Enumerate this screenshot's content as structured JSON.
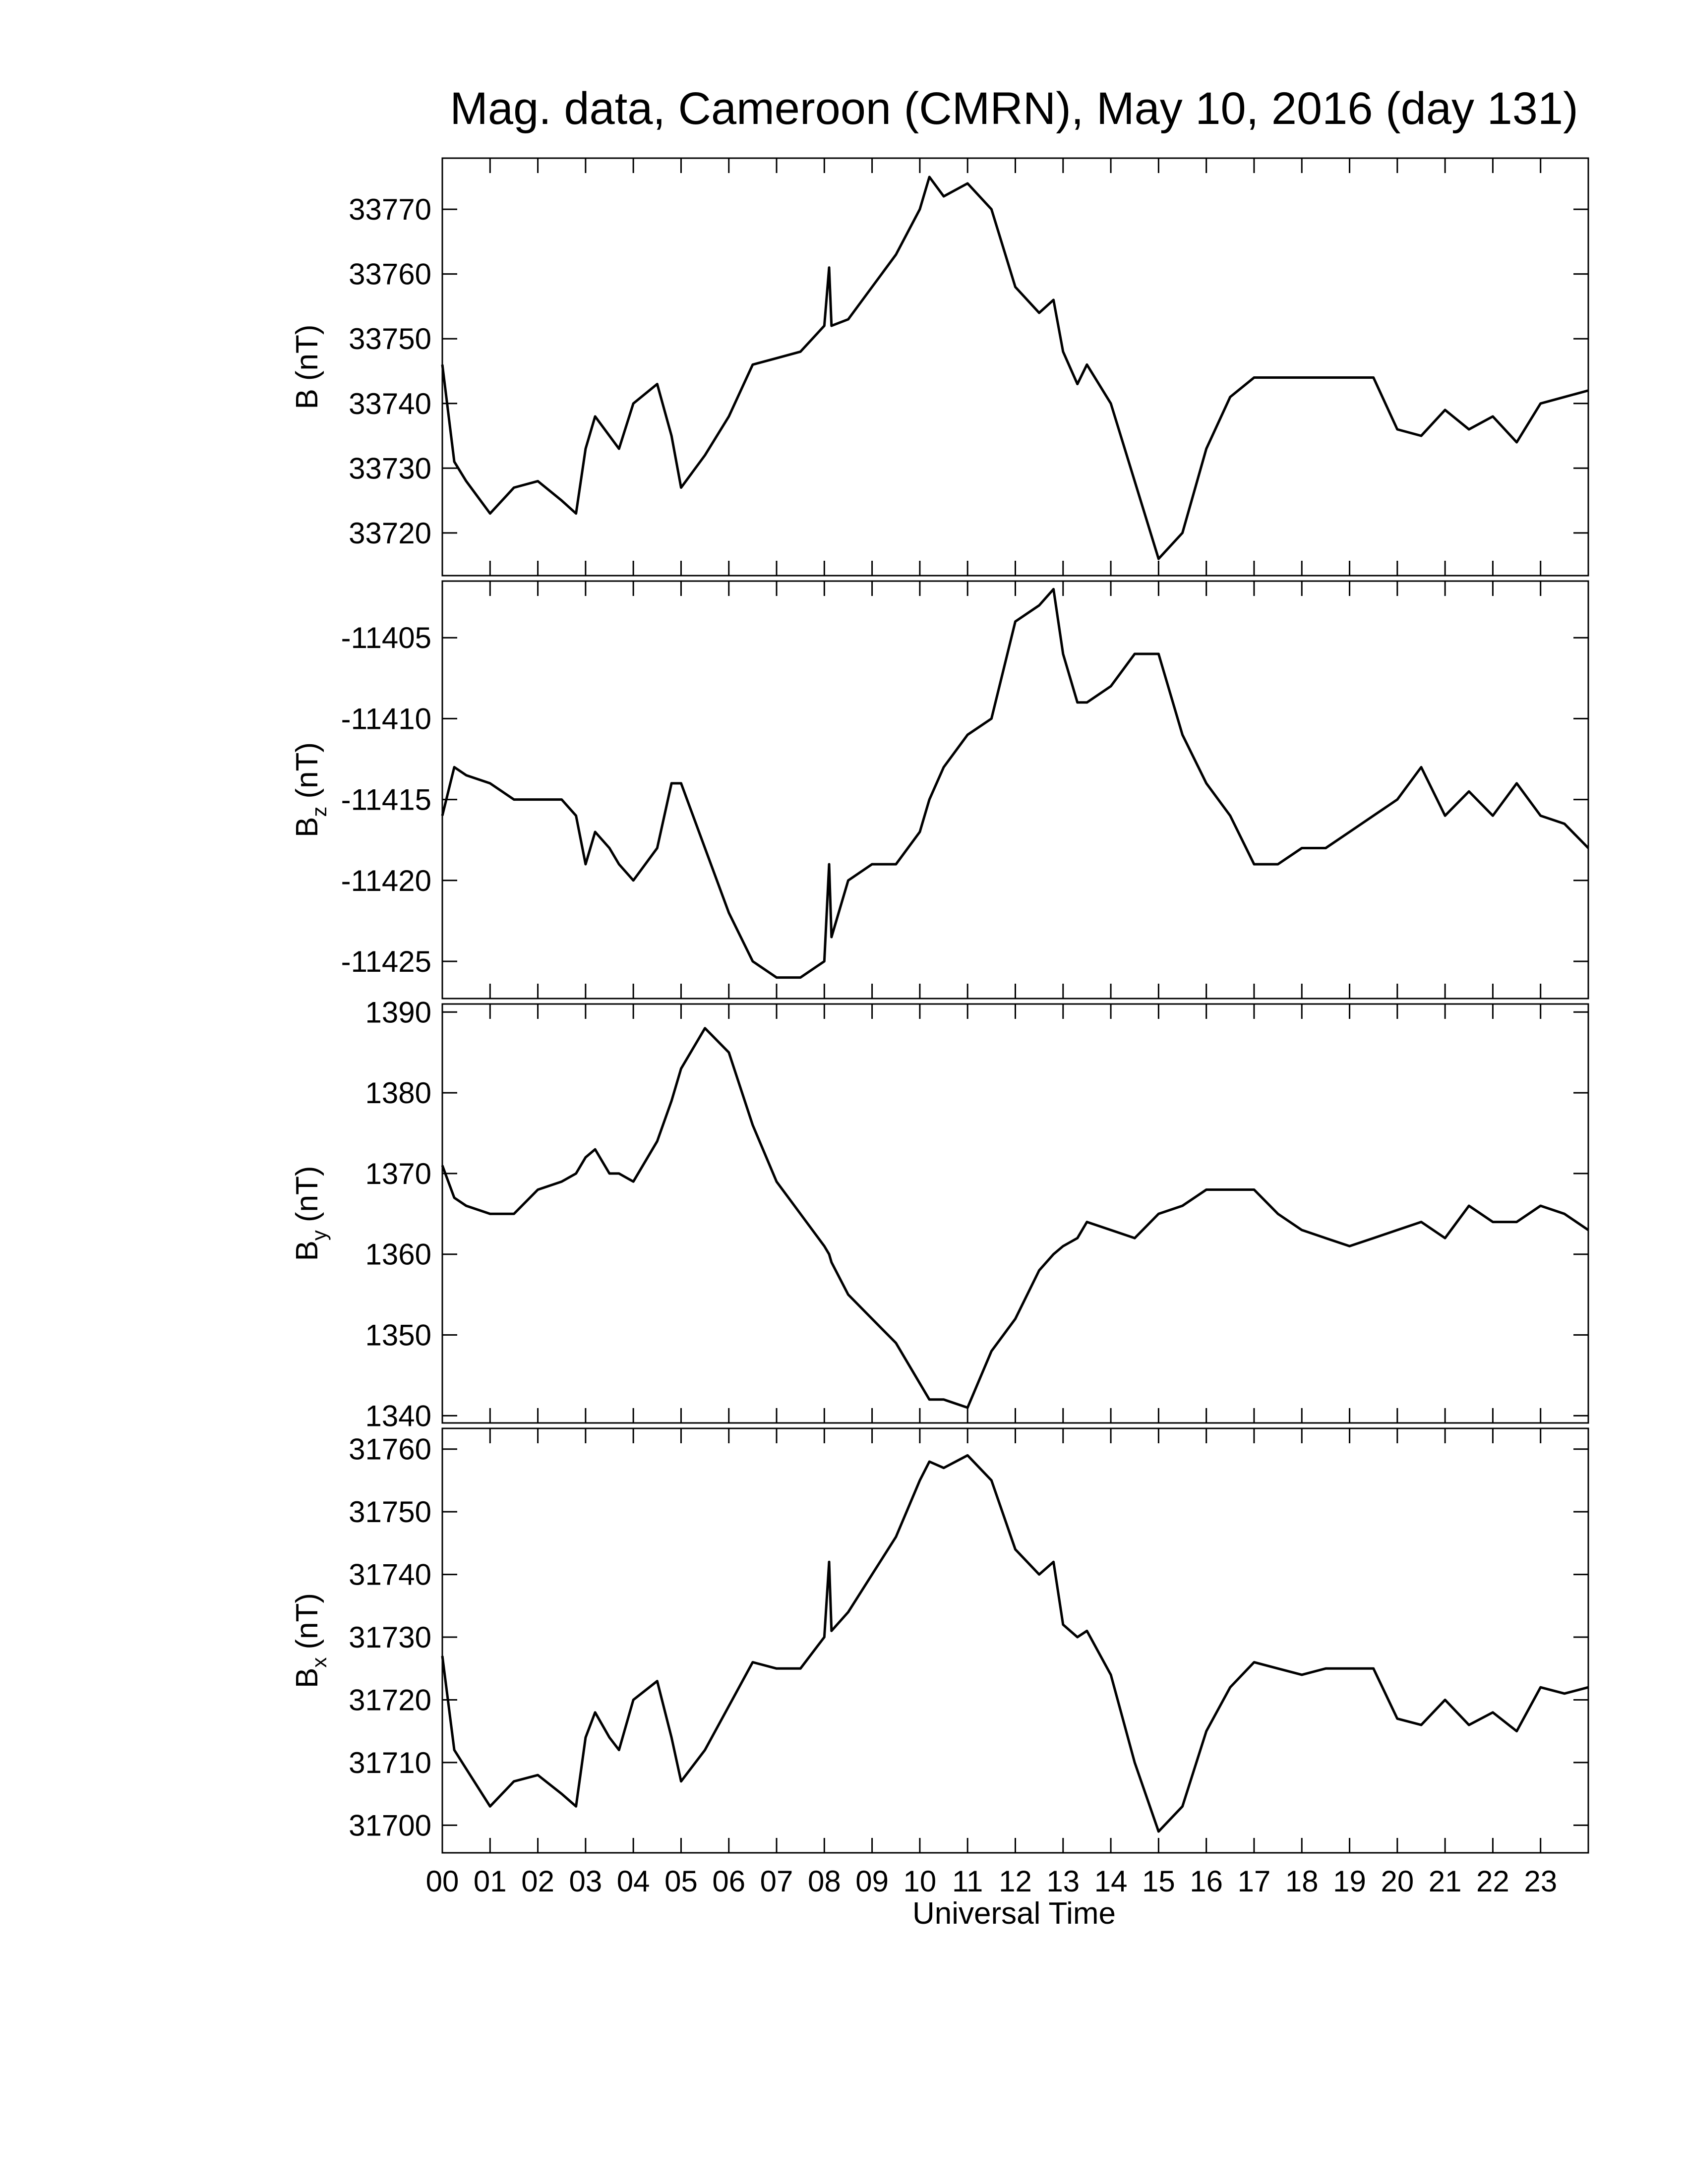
{
  "title": "Mag. data, Cameroon (CMRN), May 10, 2016 (day 131)",
  "xlabel": "Universal Time",
  "xlim": [
    0,
    24
  ],
  "xticks": [
    {
      "value": 0,
      "label": "00"
    },
    {
      "value": 1,
      "label": "01"
    },
    {
      "value": 2,
      "label": "02"
    },
    {
      "value": 3,
      "label": "03"
    },
    {
      "value": 4,
      "label": "04"
    },
    {
      "value": 5,
      "label": "05"
    },
    {
      "value": 6,
      "label": "06"
    },
    {
      "value": 7,
      "label": "07"
    },
    {
      "value": 8,
      "label": "08"
    },
    {
      "value": 9,
      "label": "09"
    },
    {
      "value": 10,
      "label": "10"
    },
    {
      "value": 11,
      "label": "11"
    },
    {
      "value": 12,
      "label": "12"
    },
    {
      "value": 13,
      "label": "13"
    },
    {
      "value": 14,
      "label": "14"
    },
    {
      "value": 15,
      "label": "15"
    },
    {
      "value": 16,
      "label": "16"
    },
    {
      "value": 17,
      "label": "17"
    },
    {
      "value": 18,
      "label": "18"
    },
    {
      "value": 19,
      "label": "19"
    },
    {
      "value": 20,
      "label": "20"
    },
    {
      "value": 21,
      "label": "21"
    },
    {
      "value": 22,
      "label": "22"
    },
    {
      "value": 23,
      "label": "23"
    }
  ],
  "x": [
    0,
    0.25,
    0.5,
    1,
    1.5,
    2,
    2.5,
    2.8,
    3,
    3.2,
    3.5,
    3.7,
    4,
    4.5,
    4.8,
    5,
    5.5,
    6,
    6.5,
    7,
    7.5,
    8,
    8.1,
    8.15,
    8.5,
    9,
    9.5,
    10,
    10.2,
    10.5,
    11,
    11.5,
    12,
    12.5,
    12.8,
    13,
    13.3,
    13.5,
    14,
    14.5,
    15,
    15.5,
    16,
    16.5,
    17,
    17.5,
    18,
    18.5,
    19,
    19.5,
    20,
    20.5,
    21,
    21.5,
    22,
    22.5,
    23,
    23.5,
    24
  ],
  "chart_data": [
    {
      "type": "line",
      "color": "#000000",
      "ylabel": "B",
      "ylabel_unit": "(nT)",
      "ylim": [
        33713.4,
        33777.9
      ],
      "yticks": [
        33720,
        33730,
        33740,
        33750,
        33760,
        33770
      ],
      "values": [
        33746,
        33731,
        33728,
        33723,
        33727,
        33728,
        33725,
        33723,
        33733,
        33738,
        33735,
        33733,
        33740,
        33743,
        33735,
        33727,
        33732,
        33738,
        33746,
        33747,
        33748,
        33752,
        33761,
        33752,
        33753,
        33758,
        33763,
        33770,
        33775,
        33772,
        33774,
        33770,
        33758,
        33754,
        33756,
        33748,
        33743,
        33746,
        33740,
        33728,
        33716,
        33720,
        33733,
        33741,
        33744,
        33744,
        33744,
        33744,
        33744,
        33744,
        33736,
        33735,
        33739,
        33736,
        33738,
        33734,
        33740,
        33741,
        33742
      ]
    },
    {
      "type": "line",
      "color": "#000000",
      "ylabel": "B",
      "ylabel_sub": "z",
      "ylabel_unit": "(nT)",
      "ylim": [
        -11427.3,
        -11401.5
      ],
      "yticks": [
        -11425,
        -11420,
        -11415,
        -11410,
        -11405
      ],
      "values": [
        -11416,
        -11413,
        -11413.5,
        -11414,
        -11415,
        -11415,
        -11415,
        -11416,
        -11419,
        -11417,
        -11418,
        -11419,
        -11420,
        -11418,
        -11414,
        -11414,
        -11418,
        -11422,
        -11425,
        -11426,
        -11426,
        -11425,
        -11419,
        -11423.5,
        -11420,
        -11419,
        -11419,
        -11417,
        -11415,
        -11413,
        -11411,
        -11410,
        -11404,
        -11403,
        -11402,
        -11406,
        -11409,
        -11409,
        -11408,
        -11406,
        -11406,
        -11411,
        -11414,
        -11416,
        -11419,
        -11419,
        -11418,
        -11418,
        -11417,
        -11416,
        -11415,
        -11413,
        -11416,
        -11414.5,
        -11416,
        -11414,
        -11416,
        -11416.5,
        -11418
      ]
    },
    {
      "type": "line",
      "color": "#000000",
      "ylabel": "B",
      "ylabel_sub": "y",
      "ylabel_unit": "(nT)",
      "ylim": [
        1339.1,
        1391
      ],
      "yticks": [
        1340,
        1350,
        1360,
        1370,
        1380,
        1390
      ],
      "values": [
        1371,
        1367,
        1366,
        1365,
        1365,
        1368,
        1369,
        1370,
        1372,
        1373,
        1370,
        1370,
        1369,
        1374,
        1379,
        1383,
        1388,
        1385,
        1376,
        1369,
        1365,
        1361,
        1360,
        1359,
        1355,
        1352,
        1349,
        1344,
        1342,
        1342,
        1341,
        1348,
        1352,
        1358,
        1360,
        1361,
        1362,
        1364,
        1363,
        1362,
        1365,
        1366,
        1368,
        1368,
        1368,
        1365,
        1363,
        1362,
        1361,
        1362,
        1363,
        1364,
        1362,
        1366,
        1364,
        1364,
        1366,
        1365,
        1363
      ]
    },
    {
      "type": "line",
      "color": "#000000",
      "ylabel": "B",
      "ylabel_sub": "x",
      "ylabel_unit": "(nT)",
      "ylim": [
        31695.6,
        31763.3
      ],
      "yticks": [
        31700,
        31710,
        31720,
        31730,
        31740,
        31750,
        31760
      ],
      "values": [
        31727,
        31712,
        31709,
        31703,
        31707,
        31708,
        31705,
        31703,
        31714,
        31718,
        31714,
        31712,
        31720,
        31723,
        31714,
        31707,
        31712,
        31719,
        31726,
        31725,
        31725,
        31730,
        31742,
        31731,
        31734,
        31740,
        31746,
        31755,
        31758,
        31757,
        31759,
        31755,
        31744,
        31740,
        31742,
        31732,
        31730,
        31731,
        31724,
        31710,
        31699,
        31703,
        31715,
        31722,
        31726,
        31725,
        31724,
        31725,
        31725,
        31725,
        31717,
        31716,
        31720,
        31716,
        31718,
        31715,
        31722,
        31721,
        31722
      ]
    }
  ]
}
